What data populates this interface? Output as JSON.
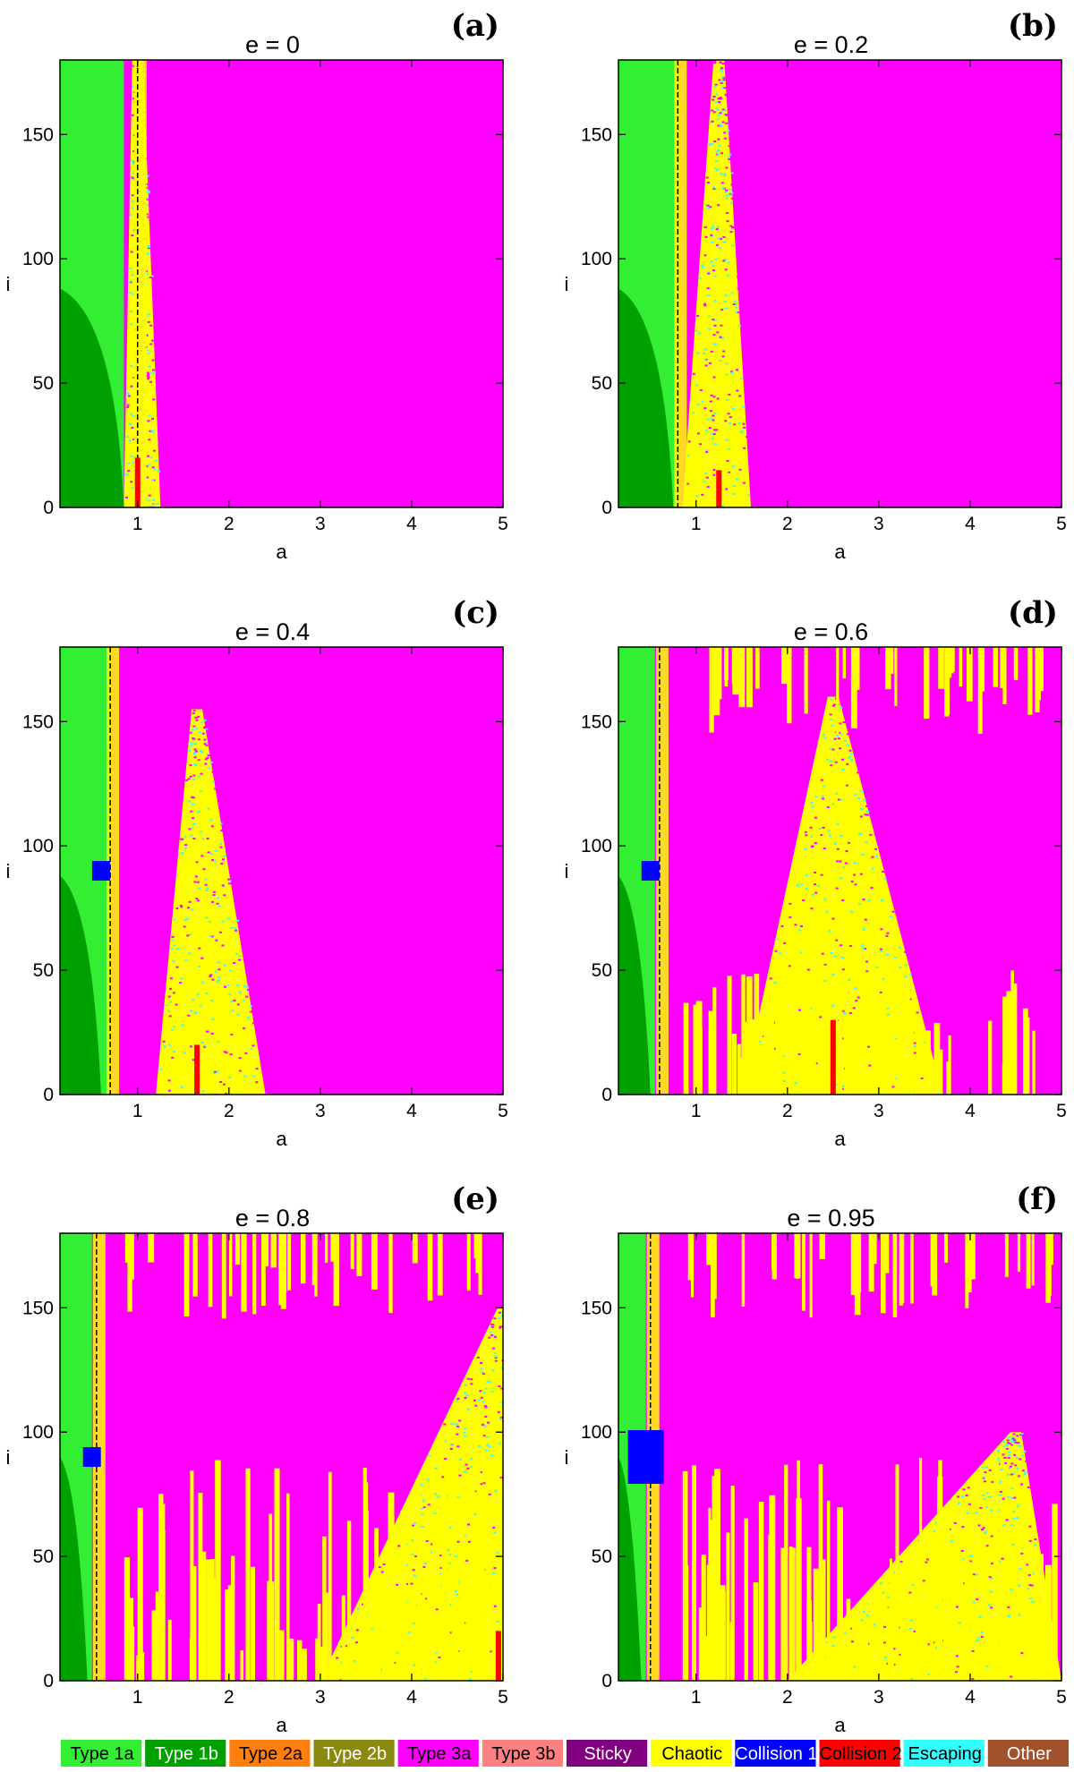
{
  "colors": {
    "type1a": "#33ee33",
    "type1b": "#00a000",
    "type2a": "#ff7f0e",
    "type2b": "#8a8a10",
    "type3a": "#ff00ff",
    "type3b": "#ff8080",
    "sticky": "#800080",
    "chaotic": "#ffff00",
    "collision1": "#0000ff",
    "collision2": "#ff0000",
    "escaping": "#33ffff",
    "other": "#a0522d"
  },
  "legend": [
    {
      "label": "Type 1a",
      "color": "#33ee33",
      "text_color": "#000000"
    },
    {
      "label": "Type 1b",
      "color": "#00a000",
      "text_color": "#ffffff"
    },
    {
      "label": "Type 2a",
      "color": "#ff7f0e",
      "text_color": "#000000"
    },
    {
      "label": "Type 2b",
      "color": "#8a8a10",
      "text_color": "#ffffff"
    },
    {
      "label": "Type 3a",
      "color": "#ff00ff",
      "text_color": "#000000"
    },
    {
      "label": "Type 3b",
      "color": "#ff8080",
      "text_color": "#000000"
    },
    {
      "label": "Sticky",
      "color": "#800080",
      "text_color": "#ffffff"
    },
    {
      "label": "Chaotic",
      "color": "#ffff00",
      "text_color": "#000000"
    },
    {
      "label": "Collision 1",
      "color": "#0000ff",
      "text_color": "#ffffff"
    },
    {
      "label": "Collision 2",
      "color": "#ff0000",
      "text_color": "#000000"
    },
    {
      "label": "Escaping",
      "color": "#33ffff",
      "text_color": "#000000"
    },
    {
      "label": "Other",
      "color": "#a0522d",
      "text_color": "#ffffff"
    }
  ],
  "chart_data": [
    {
      "type": "heatmap",
      "panel": "(a)",
      "title": "e = 0",
      "xlabel": "a",
      "ylabel": "i",
      "xlim": [
        0.15,
        5
      ],
      "ylim": [
        0,
        180
      ],
      "xticks": [
        1,
        2,
        3,
        4,
        5
      ],
      "yticks": [
        0,
        50,
        100,
        150
      ],
      "regions": {
        "type1b_boundary_i_at_min_a": 88,
        "type1b_boundary_a_at_i0": 0.85,
        "type1a_right_edge_a": 0.85,
        "separatrix_a": 1.0,
        "chaotic_band": {
          "a_from": 0.85,
          "a_to_at_i0": 1.25,
          "peak_a": 1.0,
          "peak_i": 180
        },
        "collision2_spike": {
          "a": 1.0,
          "height_i": 20
        }
      }
    },
    {
      "type": "heatmap",
      "panel": "(b)",
      "title": "e = 0.2",
      "xlabel": "a",
      "ylabel": "i",
      "xlim": [
        0.15,
        5
      ],
      "ylim": [
        0,
        180
      ],
      "xticks": [
        1,
        2,
        3,
        4,
        5
      ],
      "yticks": [
        0,
        50,
        100,
        150
      ],
      "regions": {
        "type1b_boundary_i_at_min_a": 88,
        "type1b_boundary_a_at_i0": 0.75,
        "type1a_right_edge_a": 0.8,
        "separatrix_a": 0.8,
        "chaotic_band": {
          "a_from": 0.85,
          "a_to_at_i0": 1.6,
          "peak_a": 1.25,
          "peak_i": 180
        },
        "collision2_spike": {
          "a": 1.25,
          "height_i": 15
        }
      }
    },
    {
      "type": "heatmap",
      "panel": "(c)",
      "title": "e = 0.4",
      "xlabel": "a",
      "ylabel": "i",
      "xlim": [
        0.15,
        5
      ],
      "ylim": [
        0,
        180
      ],
      "xticks": [
        1,
        2,
        3,
        4,
        5
      ],
      "yticks": [
        0,
        50,
        100,
        150
      ],
      "regions": {
        "type1b_boundary_i_at_min_a": 88,
        "type1b_boundary_a_at_i0": 0.6,
        "type1a_right_edge_a": 0.7,
        "separatrix_a": 0.7,
        "chaotic_band": {
          "a_from": 1.2,
          "a_to_at_i0": 2.4,
          "peak_a": 1.65,
          "peak_i": 155
        },
        "collision1_patch": {
          "a": 0.6,
          "i": 90
        },
        "collision2_spike": {
          "a": 1.65,
          "height_i": 20
        }
      }
    },
    {
      "type": "heatmap",
      "panel": "(d)",
      "title": "e = 0.6",
      "xlabel": "a",
      "ylabel": "i",
      "xlim": [
        0.15,
        5
      ],
      "ylim": [
        0,
        180
      ],
      "xticks": [
        1,
        2,
        3,
        4,
        5
      ],
      "yticks": [
        0,
        50,
        100,
        150
      ],
      "regions": {
        "type1b_boundary_i_at_min_a": 88,
        "type1b_boundary_a_at_i0": 0.5,
        "type1a_right_edge_a": 0.55,
        "separatrix_a": 0.6,
        "chaotic_band": {
          "a_from": 1.5,
          "a_to_at_i0": 3.7,
          "peak_a": 2.5,
          "peak_i": 160
        },
        "collision1_patch": {
          "a": 0.5,
          "i": 90
        },
        "collision2_spike": {
          "a": 2.5,
          "height_i": 30
        }
      }
    },
    {
      "type": "heatmap",
      "panel": "(e)",
      "title": "e = 0.8",
      "xlabel": "a",
      "ylabel": "i",
      "xlim": [
        0.15,
        5
      ],
      "ylim": [
        0,
        180
      ],
      "xticks": [
        1,
        2,
        3,
        4,
        5
      ],
      "yticks": [
        0,
        50,
        100,
        150
      ],
      "regions": {
        "type1b_boundary_i_at_min_a": 90,
        "type1b_boundary_a_at_i0": 0.45,
        "type1a_right_edge_a": 0.5,
        "separatrix_a": 0.55,
        "chaotic_band": {
          "a_from": 3.0,
          "a_to_at_i0": 5.0,
          "peak_a": 5.0,
          "peak_i": 150
        },
        "collision1_patch": {
          "a": 0.5,
          "i": 90
        },
        "collision2_spike": {
          "a": 4.95,
          "height_i": 20
        }
      }
    },
    {
      "type": "heatmap",
      "panel": "(f)",
      "title": "e = 0.95",
      "xlabel": "a",
      "ylabel": "i",
      "xlim": [
        0.15,
        5
      ],
      "ylim": [
        0,
        180
      ],
      "xticks": [
        1,
        2,
        3,
        4,
        5
      ],
      "yticks": [
        0,
        50,
        100,
        150
      ],
      "regions": {
        "type1b_boundary_i_at_min_a": 90,
        "type1b_boundary_a_at_i0": 0.4,
        "type1a_right_edge_a": 0.45,
        "separatrix_a": 0.5,
        "chaotic_band": {
          "a_from": 2.0,
          "a_to_at_i0": 5.0,
          "peak_a": 4.5,
          "peak_i": 100
        },
        "collision1_patch": {
          "a": 0.45,
          "i": 90
        }
      }
    }
  ]
}
